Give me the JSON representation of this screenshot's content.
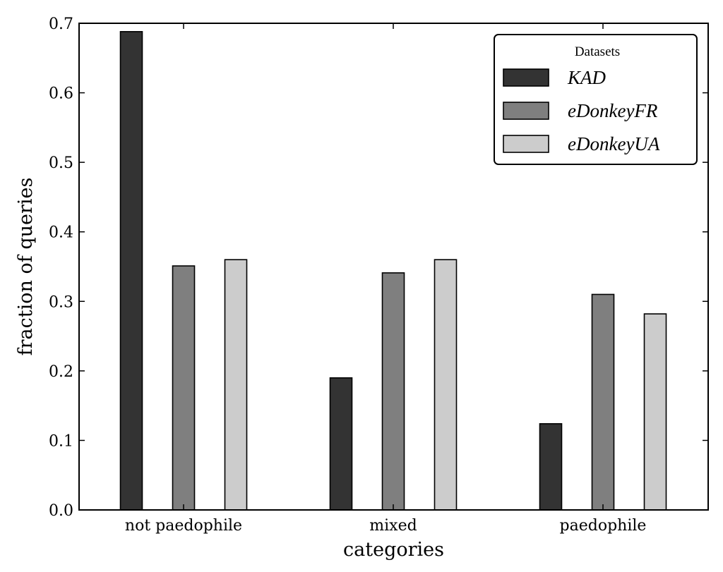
{
  "chart_data": {
    "type": "bar",
    "title": "",
    "xlabel": "categories",
    "ylabel": "fraction of queries",
    "categories": [
      "not paedophile",
      "mixed",
      "paedophile"
    ],
    "series": [
      {
        "name": "KAD",
        "values": [
          0.688,
          0.19,
          0.124
        ],
        "color": "#333333"
      },
      {
        "name": "eDonkeyFR",
        "values": [
          0.351,
          0.341,
          0.31
        ],
        "color": "#7f7f7f"
      },
      {
        "name": "eDonkeyUA",
        "values": [
          0.36,
          0.36,
          0.282
        ],
        "color": "#cccccc"
      }
    ],
    "ylim": [
      0,
      0.7
    ],
    "yticks": [
      "0.0",
      "0.1",
      "0.2",
      "0.3",
      "0.4",
      "0.5",
      "0.6",
      "0.7"
    ],
    "grid": false,
    "legend": {
      "title": "Datasets",
      "position": "top-right"
    }
  }
}
